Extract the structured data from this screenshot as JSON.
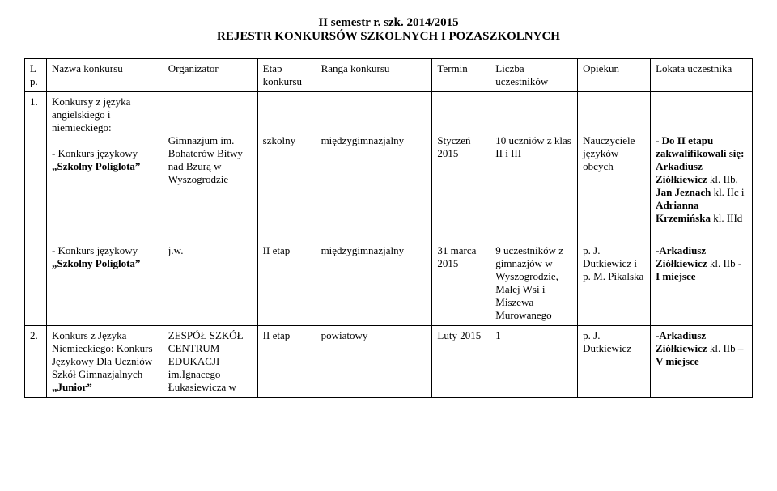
{
  "title_line1": "II semestr r. szk. 2014/2015",
  "title_line2": "REJESTR KONKURSÓW SZKOLNYCH I POZASZKOLNYCH",
  "headers": {
    "lp": "Lp.",
    "nazwa": "Nazwa konkursu",
    "organizator": "Organizator",
    "etap": "Etap konkursu",
    "ranga": "Ranga konkursu",
    "termin": "Termin",
    "liczba": "Liczba uczestników",
    "opiekun": "Opiekun",
    "lokata": "Lokata uczestnika"
  },
  "rows": {
    "r1": {
      "lp": "1.",
      "nazwa_intro": "Konkursy z języka angielskiego i niemieckiego:",
      "sub1": {
        "nazwa": "- Konkurs językowy „Szkolny Poliglota”",
        "organizator": "Gimnazjum im. Bohaterów Bitwy nad Bzurą w Wyszogrodzie",
        "etap": "szkolny",
        "ranga": "międzygimnazjalny",
        "termin": "Styczeń 2015",
        "liczba": "10 uczniów z klas II i III",
        "opiekun": "Nauczyciele języków obcych",
        "lokata": "- Do II etapu zakwalifikowali się: Arkadiusz Ziółkiewicz kl. IIb, Jan Jeznach kl. IIc i Adrianna Krzemińska kl. IIId"
      },
      "sub2": {
        "nazwa": "- Konkurs językowy „Szkolny Poliglota”",
        "organizator": "j.w.",
        "etap": "II etap",
        "ranga": "międzygimnazjalny",
        "termin": "31 marca 2015",
        "liczba": "9 uczestników z gimnazjów w Wyszogrodzie, Małej Wsi i Miszewa Murowanego",
        "opiekun": "p. J. Dutkiewicz i p. M. Pikalska",
        "lokata": "-Arkadiusz Ziółkiewicz kl. IIb - I miejsce"
      }
    },
    "r2": {
      "lp": "2.",
      "nazwa": "Konkurs z Języka Niemieckiego: Konkurs Językowy Dla Uczniów Szkół Gimnazjalnych „Junior”",
      "organizator": "ZESPÓŁ SZKÓŁ CENTRUM EDUKACJI im.Ignacego Łukasiewicza w",
      "etap": "II etap",
      "ranga": "powiatowy",
      "termin": "Luty 2015",
      "liczba": "1",
      "opiekun": "p. J. Dutkiewicz",
      "lokata": "-Arkadiusz Ziółkiewicz kl. IIb – V miejsce"
    }
  },
  "lokata_parts": {
    "r1_sub1": {
      "prefix": "- ",
      "bold1": "Do II etapu zakwalifikowali się: Arkadiusz Ziółkiewicz",
      "mid1": " kl. IIb,",
      "br": "",
      "bold2": "Jan Jeznach",
      "mid2": " kl. IIc i ",
      "bold3": "Adrianna Krzemińska",
      "mid3": " kl. IIId"
    },
    "r1_sub2": {
      "bold1": "-Arkadiusz Ziółkiewicz",
      "mid1": " kl. IIb - ",
      "bold2": "I miejsce"
    },
    "r2": {
      "bold1": "-Arkadiusz Ziółkiewicz",
      "mid1": " kl. IIb –",
      "br": "",
      "bold2": "V miejsce"
    }
  },
  "nazwa_bold": {
    "r1_sub1_prefix": "- Konkurs językowy ",
    "r1_sub1_bold": "„Szkolny Poliglota”",
    "r1_sub2_prefix": "- Konkurs językowy ",
    "r1_sub2_bold": "„Szkolny Poliglota”",
    "r2_part1": "Konkurs z Języka Niemieckiego: Konkurs Językowy Dla Uczniów Szkół Gimnazjalnych ",
    "r2_part2": "„Junior”"
  }
}
